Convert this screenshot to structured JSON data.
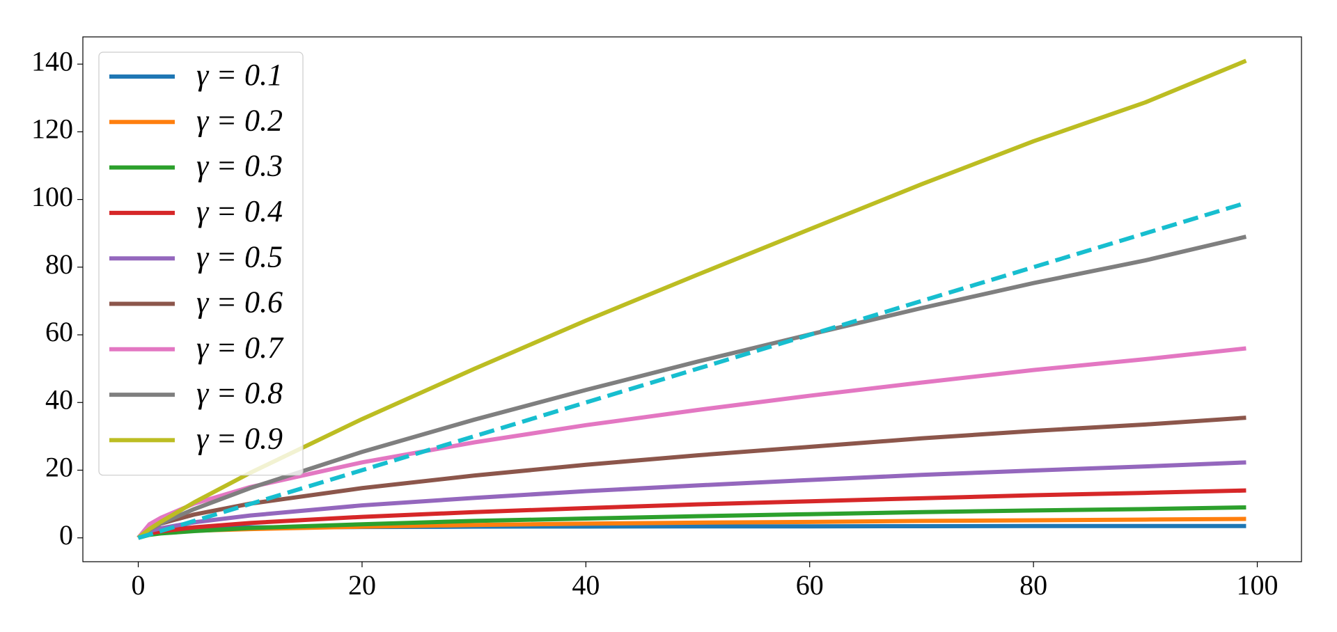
{
  "chart_data": {
    "type": "line",
    "x": [
      0,
      1,
      2,
      5,
      10,
      20,
      30,
      40,
      50,
      60,
      70,
      80,
      90,
      99
    ],
    "series": [
      {
        "name": "γ = 0.1",
        "color": "#1f77b4",
        "values": [
          0,
          2.5,
          2.8,
          3.0,
          3.1,
          3.2,
          3.3,
          3.35,
          3.4,
          3.4,
          3.45,
          3.5,
          3.5,
          3.5
        ]
      },
      {
        "name": "γ = 0.2",
        "color": "#ff7f0e",
        "values": [
          0,
          1.2,
          1.5,
          2.1,
          2.6,
          3.3,
          3.8,
          4.2,
          4.5,
          4.7,
          5.0,
          5.2,
          5.4,
          5.6
        ]
      },
      {
        "name": "γ = 0.3",
        "color": "#2ca02c",
        "values": [
          0,
          0.9,
          1.3,
          2.0,
          2.9,
          4.0,
          5.0,
          5.7,
          6.4,
          7.0,
          7.6,
          8.1,
          8.5,
          9
        ]
      },
      {
        "name": "γ = 0.4",
        "color": "#d62728",
        "values": [
          0,
          1.3,
          1.9,
          3.1,
          4.4,
          6.2,
          7.6,
          8.8,
          9.9,
          10.8,
          11.7,
          12.6,
          13.3,
          14
        ]
      },
      {
        "name": "γ = 0.5",
        "color": "#9467bd",
        "values": [
          0,
          2.0,
          2.8,
          4.6,
          6.6,
          9.6,
          11.8,
          13.8,
          15.5,
          17.1,
          18.6,
          19.9,
          21.1,
          22.3
        ]
      },
      {
        "name": "γ = 0.6",
        "color": "#8c564b",
        "values": [
          0,
          2.8,
          4.2,
          6.9,
          10.1,
          14.7,
          18.4,
          21.6,
          24.4,
          26.9,
          29.4,
          31.6,
          33.5,
          35.5
        ]
      },
      {
        "name": "γ = 0.7",
        "color": "#e377c2",
        "values": [
          0,
          4.0,
          5.9,
          10.1,
          15.0,
          22.3,
          28.2,
          33.3,
          37.8,
          42.0,
          45.9,
          49.6,
          52.8,
          56
        ]
      },
      {
        "name": "γ = 0.8",
        "color": "#7f7f7f",
        "values": [
          0,
          2.4,
          4.2,
          8.5,
          14.7,
          25.4,
          34.9,
          43.7,
          52.1,
          60.1,
          67.9,
          75.3,
          82.0,
          89
        ]
      },
      {
        "name": "γ = 0.9",
        "color": "#bcbd22",
        "values": [
          0,
          2.6,
          4.7,
          10.5,
          19.2,
          35.1,
          49.9,
          64.2,
          77.8,
          91.2,
          104.5,
          117.2,
          128.7,
          141
        ]
      },
      {
        "color": "#17becf",
        "dashed": true,
        "values": [
          0,
          1,
          2,
          5,
          10,
          20,
          30,
          40,
          50,
          60,
          70,
          80,
          90,
          99
        ]
      }
    ],
    "xlim": [
      -4.95,
      103.95
    ],
    "xticks": [
      0,
      20,
      40,
      60,
      80,
      100
    ],
    "ylim": [
      -7.05,
      148.05
    ],
    "yticks": [
      0,
      20,
      40,
      60,
      80,
      100,
      120,
      140
    ],
    "grid": false,
    "legend": "upper left"
  }
}
